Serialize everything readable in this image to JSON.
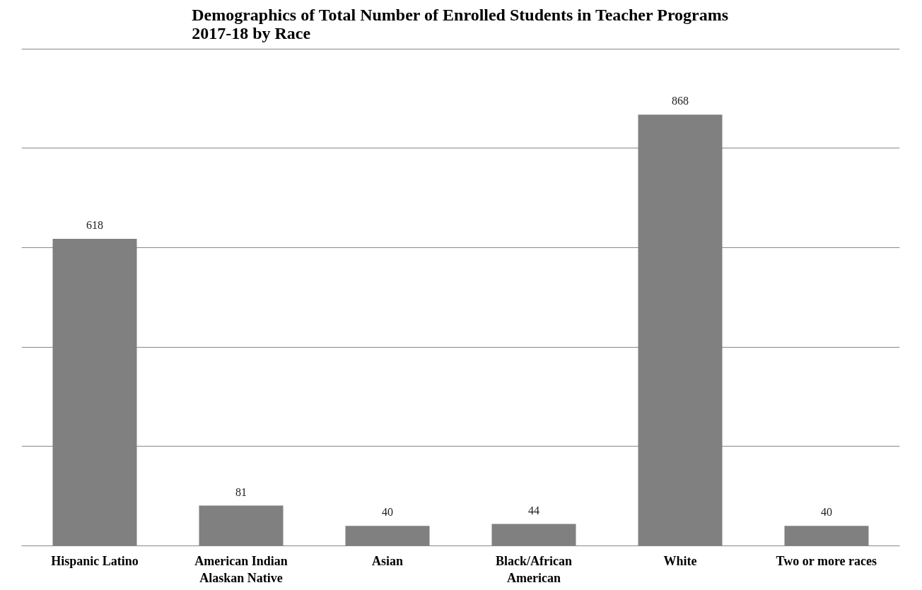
{
  "chart_data": {
    "type": "bar",
    "title": "Demographics of Total Number of Enrolled Students in Teacher Programs\n2017-18 by Race",
    "categories": [
      "Hispanic Latino",
      "American Indian Alaskan Native",
      "Asian",
      "Black/African American",
      "White",
      "Two or more races"
    ],
    "values": [
      618,
      81,
      40,
      44,
      868,
      40
    ],
    "color": "#808080",
    "tick_labels": "x",
    "grid": "y",
    "data_labels": true
  }
}
